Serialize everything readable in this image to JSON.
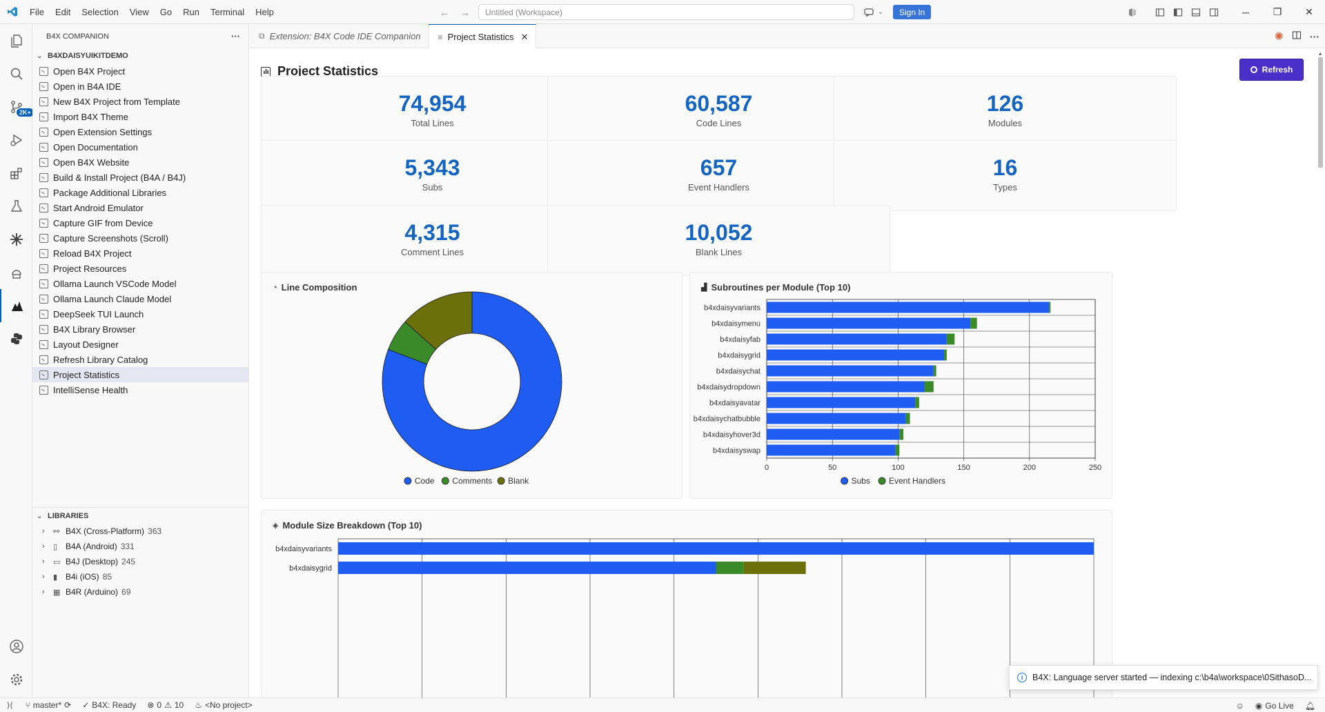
{
  "titlebar": {
    "menu": [
      "File",
      "Edit",
      "Selection",
      "View",
      "Go",
      "Run",
      "Terminal",
      "Help"
    ],
    "search_placeholder": "Untitled (Workspace)",
    "sign_in": "Sign In"
  },
  "activitybar": {
    "scm_badge": "2K+"
  },
  "sidebar": {
    "title": "B4X COMPANION",
    "more": "···",
    "workspace": "B4XDAISYUIKITDEMO",
    "commands": [
      "Open B4X Project",
      "Open in B4A IDE",
      "New B4X Project from Template",
      "Import B4X Theme",
      "Open Extension Settings",
      "Open Documentation",
      "Open B4X Website",
      "Build & Install Project (B4A / B4J)",
      "Package Additional Libraries",
      "Start Android Emulator",
      "Capture GIF from Device",
      "Capture Screenshots (Scroll)",
      "Reload B4X Project",
      "Project Resources",
      "Ollama Launch VSCode Model",
      "Ollama Launch Claude Model",
      "DeepSeek TUI Launch",
      "B4X Library Browser",
      "Layout Designer",
      "Refresh Library Catalog",
      "Project Statistics",
      "IntelliSense Health"
    ],
    "selected_index": 20,
    "libraries_title": "LIBRARIES",
    "libraries": [
      {
        "name": "B4X (Cross-Platform)",
        "count": "363",
        "icon": "cross-platform-icon"
      },
      {
        "name": "B4A (Android)",
        "count": "331",
        "icon": "android-phone-icon"
      },
      {
        "name": "B4J (Desktop)",
        "count": "245",
        "icon": "desktop-window-icon"
      },
      {
        "name": "B4i (iOS)",
        "count": "85",
        "icon": "iphone-icon"
      },
      {
        "name": "B4R (Arduino)",
        "count": "69",
        "icon": "arduino-board-icon"
      }
    ]
  },
  "tabs": [
    {
      "label": "Extension: B4X Code IDE Companion",
      "active": false
    },
    {
      "label": "Project Statistics",
      "active": true
    }
  ],
  "page": {
    "title": "Project Statistics",
    "refresh": "Refresh",
    "stats": [
      {
        "value": "74,954",
        "label": "Total Lines"
      },
      {
        "value": "60,587",
        "label": "Code Lines"
      },
      {
        "value": "126",
        "label": "Modules"
      },
      {
        "value": "5,343",
        "label": "Subs"
      },
      {
        "value": "657",
        "label": "Event Handlers"
      },
      {
        "value": "16",
        "label": "Types"
      },
      {
        "value": "4,315",
        "label": "Comment Lines"
      },
      {
        "value": "10,052",
        "label": "Blank Lines"
      }
    ]
  },
  "chart_data": [
    {
      "type": "pie",
      "title": "Line Composition",
      "categories": [
        "Code",
        "Comments",
        "Blank"
      ],
      "values": [
        60587,
        4315,
        10052
      ],
      "colors": [
        "#1f5cf2",
        "#3a8a2a",
        "#6b700a"
      ],
      "legend": "bottom"
    },
    {
      "type": "bar",
      "orientation": "horizontal",
      "stacked": true,
      "title": "Subroutines per Module (Top 10)",
      "categories": [
        "b4xdaisyvariants",
        "b4xdaisymenu",
        "b4xdaisyfab",
        "b4xdaisygrid",
        "b4xdaisychat",
        "b4xdaisydropdown",
        "b4xdaisyavatar",
        "b4xdaisychatbubble",
        "b4xdaisyhover3d",
        "b4xdaisyswap"
      ],
      "series": [
        {
          "name": "Subs",
          "values": [
            215,
            155,
            137,
            135,
            127,
            120,
            113,
            106,
            101,
            98
          ],
          "color": "#1f5cf2"
        },
        {
          "name": "Event Handlers",
          "values": [
            1,
            5,
            6,
            2,
            2,
            7,
            3,
            3,
            3,
            3
          ],
          "color": "#3a8a2a"
        }
      ],
      "xlim": [
        0,
        250
      ],
      "xticks": [
        "0",
        "50",
        "100",
        "150",
        "200",
        "250"
      ],
      "legend": "bottom",
      "grid": true
    },
    {
      "type": "bar",
      "orientation": "horizontal",
      "stacked": true,
      "title": "Module Size Breakdown (Top 10)",
      "categories": [
        "b4xdaisyvariants",
        "b4xdaisygrid"
      ],
      "series": [
        {
          "name": "Code",
          "values": [
            9200,
            4500
          ],
          "color": "#1f5cf2"
        },
        {
          "name": "Comments",
          "values": [
            0,
            330
          ],
          "color": "#3a8a2a"
        },
        {
          "name": "Blank",
          "values": [
            0,
            740
          ],
          "color": "#6b700a"
        }
      ],
      "xlim": [
        0,
        9000
      ],
      "grid": true
    }
  ],
  "toast": {
    "message": "B4X: Language server started — indexing c:\\b4a\\workspace\\0SithasoD..."
  },
  "statusbar": {
    "branch": "master*",
    "b4x_status": "B4X: Ready",
    "errors": "0",
    "warnings": "10",
    "project": "<No project>",
    "go_live": "Go Live"
  }
}
